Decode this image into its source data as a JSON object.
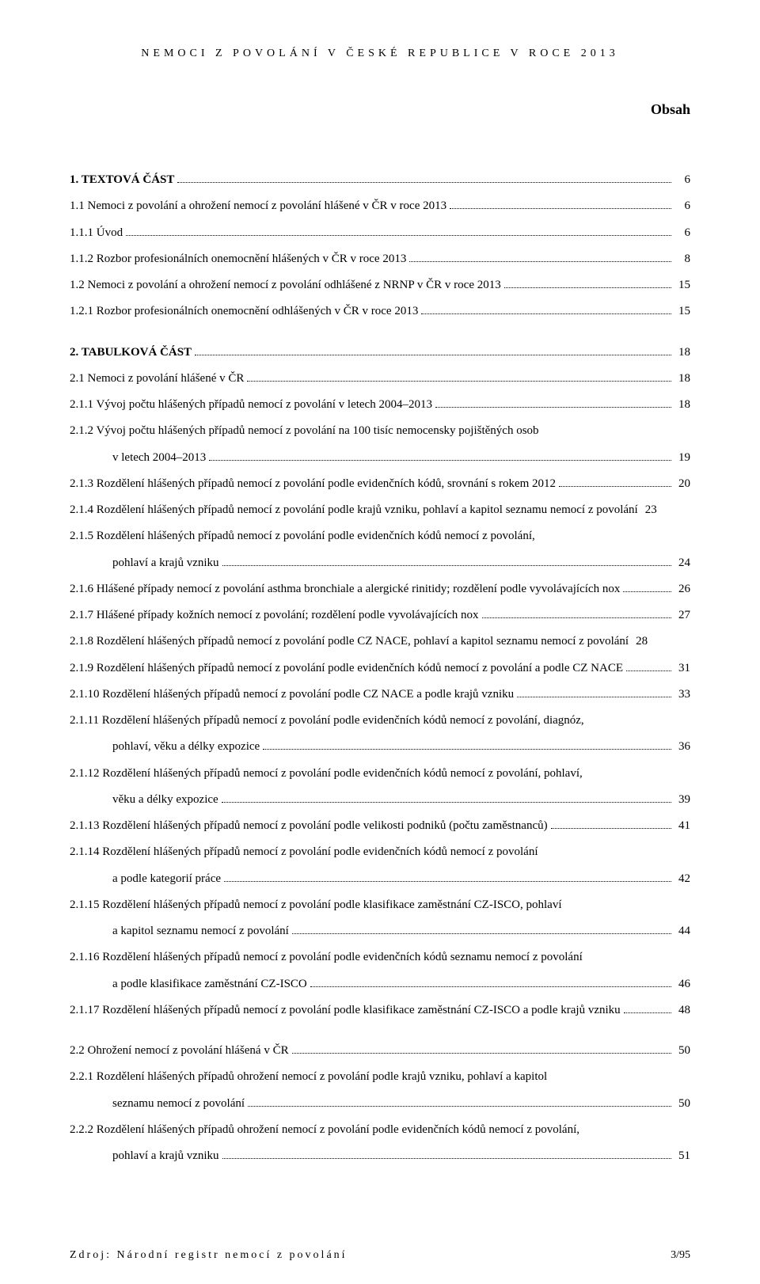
{
  "header": "NEMOCI Z POVOLÁNÍ V ČESKÉ REPUBLICE V ROCE 2013",
  "title": "Obsah",
  "entries": [
    {
      "bold": true,
      "text": "1. TEXTOVÁ ČÁST",
      "page": "6"
    },
    {
      "bold": false,
      "text": "1.1 Nemoci z povolání a ohrožení nemocí z povolání hlášené v ČR v roce 2013",
      "page": "6"
    },
    {
      "bold": false,
      "text": "1.1.1 Úvod",
      "page": "6"
    },
    {
      "bold": false,
      "text": "1.1.2 Rozbor profesionálních onemocnění hlášených v ČR v roce 2013",
      "page": "8"
    },
    {
      "bold": false,
      "text": "1.2 Nemoci z povolání a ohrožení nemocí z povolání odhlášené z NRNP v ČR v roce 2013",
      "page": "15"
    },
    {
      "bold": false,
      "text": "1.2.1 Rozbor profesionálních onemocnění odhlášených v ČR v roce 2013",
      "page": "15"
    },
    {
      "spacer": true
    },
    {
      "bold": true,
      "text": "2. TABULKOVÁ ČÁST",
      "page": "18"
    },
    {
      "bold": false,
      "text": "2.1 Nemoci z povolání hlášené v ČR",
      "page": "18"
    },
    {
      "bold": false,
      "text": "2.1.1 Vývoj počtu hlášených případů nemocí z povolání v letech 2004–2013",
      "page": "18"
    },
    {
      "bold": false,
      "text": "2.1.2 Vývoj počtu hlášených případů nemocí z povolání na 100 tisíc nemocensky pojištěných osob",
      "cont": "v letech 2004–2013",
      "page": "19"
    },
    {
      "bold": false,
      "text": "2.1.3 Rozdělení hlášených případů nemocí z povolání podle evidenčních kódů, srovnání s rokem 2012",
      "page": "20"
    },
    {
      "bold": false,
      "text": "2.1.4 Rozdělení hlášených případů nemocí z povolání podle krajů vzniku, pohlaví a kapitol seznamu nemocí z povolání",
      "page": "23",
      "noleader": true
    },
    {
      "bold": false,
      "text": "2.1.5 Rozdělení hlášených případů nemocí z povolání podle evidenčních kódů nemocí z povolání,",
      "cont": "pohlaví a krajů vzniku",
      "page": "24"
    },
    {
      "bold": false,
      "text": "2.1.6 Hlášené případy nemocí z povolání asthma bronchiale a alergické rinitidy; rozdělení podle vyvolávajících nox",
      "page": "26"
    },
    {
      "bold": false,
      "text": "2.1.7 Hlášené případy kožních nemocí z povolání; rozdělení podle vyvolávajících nox",
      "page": "27"
    },
    {
      "bold": false,
      "text": "2.1.8 Rozdělení hlášených případů nemocí z povolání podle CZ NACE, pohlaví a kapitol seznamu nemocí z povolání",
      "page": "28",
      "noleader": true
    },
    {
      "bold": false,
      "text": "2.1.9 Rozdělení hlášených případů nemocí z povolání podle evidenčních kódů nemocí z povolání a podle CZ NACE",
      "page": "31"
    },
    {
      "bold": false,
      "text": "2.1.10 Rozdělení hlášených případů nemocí z povolání podle CZ NACE a podle krajů vzniku",
      "page": "33"
    },
    {
      "bold": false,
      "text": "2.1.11 Rozdělení hlášených případů nemocí z povolání podle evidenčních kódů nemocí z povolání, diagnóz,",
      "cont": "pohlaví, věku a délky expozice",
      "page": "36"
    },
    {
      "bold": false,
      "text": "2.1.12 Rozdělení hlášených případů nemocí z povolání podle evidenčních kódů nemocí z povolání, pohlaví,",
      "cont": "věku a délky expozice",
      "page": "39"
    },
    {
      "bold": false,
      "text": "2.1.13 Rozdělení hlášených případů nemocí z povolání podle velikosti podniků (počtu zaměstnanců)",
      "page": "41"
    },
    {
      "bold": false,
      "text": "2.1.14 Rozdělení hlášených případů nemocí z povolání podle evidenčních kódů nemocí z povolání",
      "cont": "a podle kategorií práce",
      "page": "42"
    },
    {
      "bold": false,
      "text": "2.1.15 Rozdělení hlášených případů nemocí z povolání podle klasifikace zaměstnání CZ-ISCO, pohlaví",
      "cont": "a kapitol seznamu nemocí z povolání",
      "page": "44"
    },
    {
      "bold": false,
      "text": "2.1.16 Rozdělení hlášených případů nemocí z povolání podle evidenčních kódů seznamu nemocí z povolání",
      "cont": "a podle klasifikace zaměstnání CZ-ISCO",
      "page": "46"
    },
    {
      "bold": false,
      "text": "2.1.17 Rozdělení hlášených případů nemocí z povolání podle klasifikace zaměstnání CZ-ISCO a podle krajů vzniku",
      "page": "48"
    },
    {
      "spacer": true
    },
    {
      "bold": false,
      "text": "2.2 Ohrožení nemocí z povolání hlášená v ČR",
      "page": "50"
    },
    {
      "bold": false,
      "text": "2.2.1 Rozdělení hlášených případů ohrožení nemocí z povolání podle krajů vzniku, pohlaví a kapitol",
      "cont": "seznamu nemocí z povolání",
      "page": "50"
    },
    {
      "bold": false,
      "text": "2.2.2 Rozdělení hlášených případů ohrožení nemocí z povolání podle evidenčních kódů nemocí z povolání,",
      "cont": "pohlaví a krajů vzniku",
      "page": "51"
    }
  ],
  "footer": {
    "source": "Zdroj: Národní registr nemocí z povolání",
    "pagenum": "3/95"
  }
}
